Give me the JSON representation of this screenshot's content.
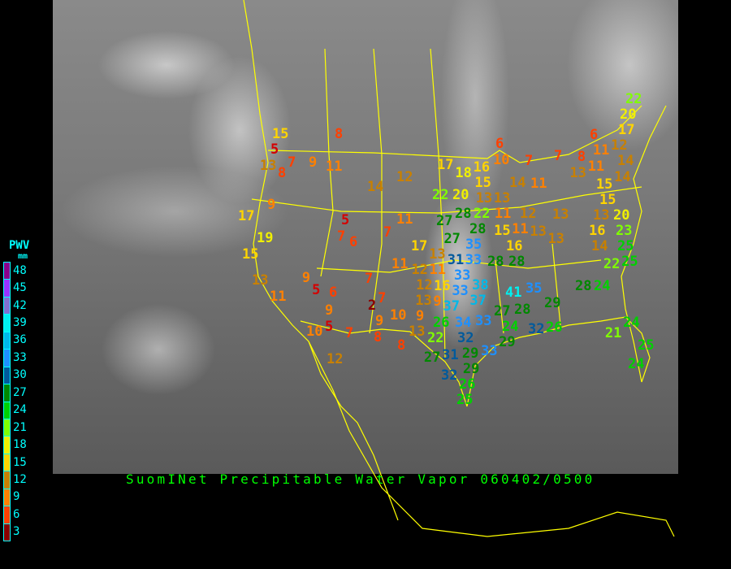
{
  "title": "SuomINet Precipitable Water Vapor 060402/0500",
  "legend": {
    "title": "PWV",
    "unit": "mm",
    "labels": [
      "48",
      "45",
      "42",
      "39",
      "36",
      "33",
      "30",
      "27",
      "24",
      "21",
      "18",
      "15",
      "12",
      "9",
      "6",
      "3"
    ],
    "colors": [
      "#8b008b",
      "#9933ff",
      "#8070d0",
      "#00f0f0",
      "#00b8e8",
      "#1e90ff",
      "#005a9c",
      "#008800",
      "#00d000",
      "#80ff00",
      "#f0f000",
      "#ffd400",
      "#c88000",
      "#ff8000",
      "#ff4000",
      "#d40000",
      "#8b0000"
    ]
  },
  "map": {
    "border_color": "#ffff00",
    "background": "infrared satellite imagery"
  },
  "stations": [
    "15",
    "5",
    "13",
    "7",
    "8",
    "9",
    "11",
    "8",
    "14",
    "12",
    "9",
    "17",
    "19",
    "5",
    "7",
    "6",
    "7",
    "11",
    "17",
    "18",
    "16",
    "6",
    "10",
    "7",
    "7",
    "8",
    "6",
    "17",
    "12",
    "11",
    "14",
    "11",
    "13",
    "14",
    "11",
    "22",
    "20",
    "15",
    "13",
    "13",
    "11",
    "27",
    "28",
    "22",
    "12",
    "13",
    "11",
    "13",
    "15",
    "16",
    "13",
    "13",
    "15",
    "15",
    "14",
    "16",
    "20",
    "23",
    "14",
    "25",
    "22",
    "20",
    "15",
    "13",
    "11",
    "9",
    "5",
    "6",
    "9",
    "5",
    "10",
    "7",
    "12",
    "7",
    "11",
    "7",
    "2",
    "10",
    "9",
    "8",
    "8",
    "9",
    "13",
    "12",
    "11",
    "17",
    "27",
    "28",
    "35",
    "31",
    "33",
    "28",
    "28",
    "13",
    "33",
    "12",
    "16",
    "33",
    "38",
    "41",
    "35",
    "13",
    "9",
    "37",
    "37",
    "26",
    "34",
    "33",
    "29",
    "28",
    "28",
    "24",
    "22",
    "32",
    "27",
    "24",
    "32",
    "26",
    "29",
    "29",
    "33",
    "27",
    "31",
    "29",
    "32",
    "26",
    "25",
    "24",
    "21",
    "25",
    "24",
    "22",
    "25"
  ]
}
